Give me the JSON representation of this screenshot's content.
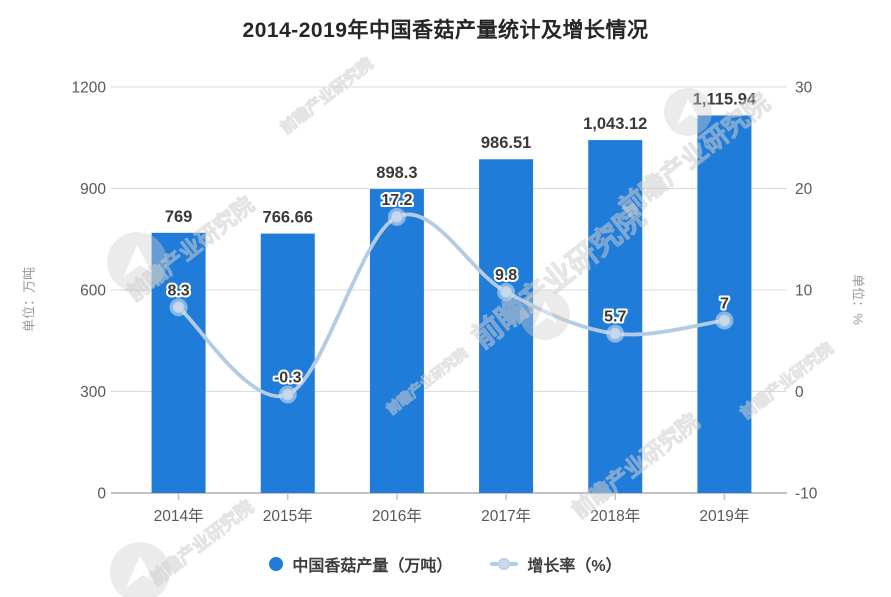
{
  "title": "2014-2019年中国香菇产量统计及增长情况",
  "watermark": {
    "text": "前瞻产业研究院"
  },
  "axes": {
    "left_unit": "单位：万吨",
    "right_unit": "单位：%"
  },
  "legend": [
    {
      "label": "中国香菇产量（万吨）",
      "marker": "bar-dot"
    },
    {
      "label": "增长率（%）",
      "marker": "line-dot"
    }
  ],
  "colors": {
    "bar": "#1f7cd9",
    "line": "#b3cbe3",
    "marker_core": "#c6d8ec",
    "marker_halo": "#d9e5f2",
    "grid": "#dadada",
    "axis": "#c3c3c3",
    "tick_text": "#595959",
    "value_text": "#3a3a3a",
    "watermark": "#cfcfcf"
  },
  "chart_data": {
    "type": "bar+line",
    "title": "2014-2019年中国香菇产量统计及增长情况",
    "categories": [
      "2014年",
      "2015年",
      "2016年",
      "2017年",
      "2018年",
      "2019年"
    ],
    "series": [
      {
        "name": "中国香菇产量（万吨）",
        "type": "bar",
        "axis": "left",
        "values": [
          769,
          766.66,
          898.3,
          986.51,
          1043.12,
          1115.94
        ],
        "labels": [
          "769",
          "766.66",
          "898.3",
          "986.51",
          "1,043.12",
          "1,115.94"
        ]
      },
      {
        "name": "增长率（%）",
        "type": "line",
        "axis": "right",
        "values": [
          8.3,
          -0.3,
          17.2,
          9.8,
          5.7,
          7
        ],
        "labels": [
          "8.3",
          "-0.3",
          "17.2",
          "9.8",
          "5.7",
          "7"
        ]
      }
    ],
    "left_axis": {
      "label": "单位：万吨",
      "min": 0,
      "max": 1200,
      "ticks": [
        0,
        300,
        600,
        900,
        1200
      ],
      "tick_labels": [
        "0",
        "300",
        "600",
        "900",
        "1200"
      ]
    },
    "right_axis": {
      "label": "单位：%",
      "min": -10,
      "max": 30,
      "ticks": [
        -10,
        0,
        10,
        20,
        30
      ],
      "tick_labels": [
        "-10",
        "0",
        "10",
        "20",
        "30"
      ]
    },
    "grid": true,
    "legend_position": "bottom",
    "smooth_line": true
  }
}
